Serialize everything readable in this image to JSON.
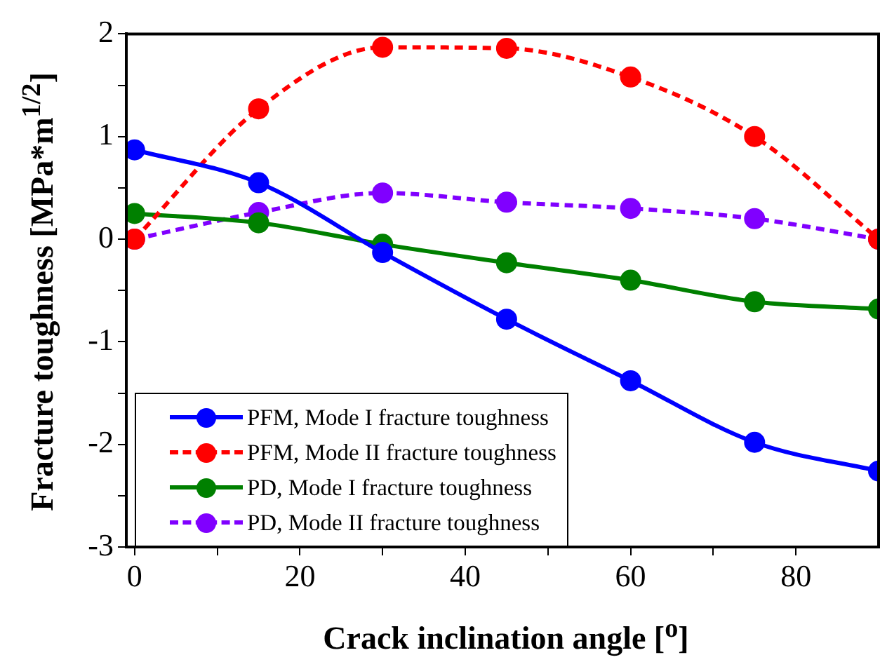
{
  "chart_data": {
    "type": "line",
    "xlabel": "Crack inclination angle [$^{o}$]",
    "ylabel": "Fracture toughness [MPa*m$^{1/2}$]",
    "x": [
      0,
      15,
      30,
      45,
      60,
      75,
      90
    ],
    "series": [
      {
        "name": "PFM, Mode I fracture toughness",
        "color": "#0000ff",
        "line_style": "solid",
        "values": [
          0.87,
          0.55,
          -0.13,
          -0.78,
          -1.38,
          -1.98,
          -2.26
        ]
      },
      {
        "name": "PFM, Mode II fracture toughness",
        "color": "#ff0000",
        "line_style": "dashed",
        "values": [
          0,
          1.27,
          1.87,
          1.86,
          1.58,
          1.0,
          0
        ]
      },
      {
        "name": "PD, Mode I fracture toughness",
        "color": "#008000",
        "line_style": "solid",
        "values": [
          0.25,
          0.16,
          -0.05,
          -0.23,
          -0.4,
          -0.61,
          -0.68
        ]
      },
      {
        "name": "PD, Mode II fracture toughness",
        "color": "#8000ff",
        "line_style": "dashed",
        "values": [
          0,
          0.26,
          0.45,
          0.36,
          0.3,
          0.2,
          0
        ]
      }
    ],
    "xlim": [
      -1,
      90
    ],
    "xticks": [
      0,
      {
        "value": 10,
        "label": null
      },
      20,
      {
        "value": 30,
        "label": null
      },
      40,
      {
        "value": 50,
        "label": null
      },
      60,
      {
        "value": 70,
        "label": null
      },
      80
    ],
    "ylim": [
      -3,
      2
    ],
    "yticks": [
      -3,
      {
        "value": -2.5,
        "label": null
      },
      -2,
      {
        "value": -1.5,
        "label": null
      },
      -1,
      {
        "value": -0.5,
        "label": null
      },
      0,
      {
        "value": 0.5,
        "label": null
      },
      1,
      {
        "value": 1.5,
        "label": null
      },
      2
    ],
    "grid": false,
    "legend": "bottom left",
    "marker": "circle"
  }
}
